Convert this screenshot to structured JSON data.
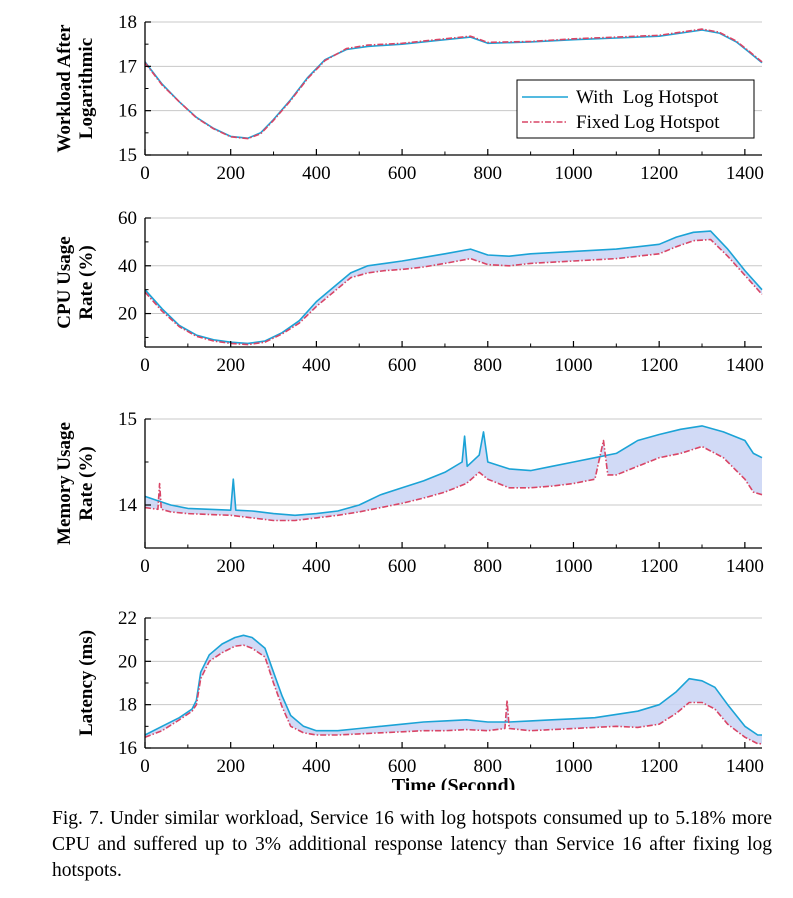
{
  "colors": {
    "with_hotspot": "#1ba3d6",
    "fixed_hotspot": "#d94566",
    "gap_fill": "#c9d3f5",
    "grid": "#c8c8c8"
  },
  "chart_data": [
    {
      "type": "line",
      "ylabel": [
        "Workload After",
        "Logarithmic"
      ],
      "xlabel": "",
      "xlim": [
        0,
        1440
      ],
      "ylim": [
        15,
        18
      ],
      "xticks": [
        0,
        200,
        400,
        600,
        800,
        1000,
        1200,
        1400
      ],
      "yticks": [
        15,
        16,
        17,
        18
      ],
      "grid": true,
      "fill_between": false,
      "legend": {
        "position": "right",
        "entries": [
          "With  Log Hotspot",
          "Fixed Log Hotspot"
        ]
      },
      "series": [
        {
          "name": "With  Log Hotspot",
          "x": [
            0,
            40,
            80,
            120,
            160,
            200,
            240,
            270,
            300,
            340,
            380,
            420,
            470,
            520,
            600,
            680,
            760,
            800,
            900,
            1000,
            1100,
            1200,
            1300,
            1340,
            1380,
            1410,
            1440
          ],
          "y": [
            17.1,
            16.6,
            16.2,
            15.85,
            15.6,
            15.42,
            15.38,
            15.5,
            15.8,
            16.25,
            16.75,
            17.15,
            17.38,
            17.45,
            17.5,
            17.58,
            17.66,
            17.52,
            17.55,
            17.6,
            17.64,
            17.68,
            17.82,
            17.75,
            17.55,
            17.32,
            17.08
          ]
        },
        {
          "name": "Fixed Log Hotspot",
          "x": [
            0,
            40,
            80,
            120,
            160,
            200,
            240,
            270,
            300,
            340,
            380,
            420,
            470,
            520,
            600,
            680,
            760,
            800,
            900,
            1000,
            1100,
            1200,
            1300,
            1340,
            1380,
            1410,
            1440
          ],
          "y": [
            17.08,
            16.58,
            16.2,
            15.84,
            15.59,
            15.41,
            15.37,
            15.48,
            15.78,
            16.23,
            16.73,
            17.13,
            17.4,
            17.48,
            17.52,
            17.6,
            17.68,
            17.54,
            17.56,
            17.62,
            17.66,
            17.7,
            17.84,
            17.77,
            17.57,
            17.34,
            17.1
          ]
        }
      ]
    },
    {
      "type": "line",
      "ylabel": [
        "CPU Usage",
        "Rate (%)"
      ],
      "xlabel": "",
      "xlim": [
        0,
        1440
      ],
      "ylim": [
        6,
        60
      ],
      "xticks": [
        0,
        200,
        400,
        600,
        800,
        1000,
        1200,
        1400
      ],
      "yticks": [
        20,
        40,
        60
      ],
      "grid": true,
      "fill_between": true,
      "series": [
        {
          "name": "With  Log Hotspot",
          "x": [
            0,
            40,
            80,
            120,
            160,
            200,
            240,
            280,
            320,
            360,
            400,
            440,
            480,
            520,
            560,
            600,
            650,
            700,
            760,
            800,
            850,
            900,
            1000,
            1100,
            1200,
            1240,
            1280,
            1320,
            1360,
            1400,
            1440
          ],
          "y": [
            30,
            22,
            15,
            11,
            9,
            8,
            7.5,
            8.5,
            12,
            17,
            25,
            31,
            37,
            40,
            41,
            42,
            43.5,
            45,
            47,
            44.5,
            44,
            45,
            46,
            47,
            49,
            52,
            54,
            54.5,
            47,
            38,
            30
          ]
        },
        {
          "name": "Fixed Log Hotspot",
          "x": [
            0,
            40,
            80,
            120,
            160,
            200,
            240,
            280,
            320,
            360,
            400,
            440,
            480,
            520,
            560,
            600,
            650,
            700,
            760,
            800,
            850,
            900,
            1000,
            1100,
            1200,
            1240,
            1280,
            1320,
            1360,
            1400,
            1440
          ],
          "y": [
            29,
            21,
            14.5,
            10.5,
            8.5,
            7.5,
            7,
            8,
            11.5,
            16,
            23,
            29,
            35,
            37,
            38,
            38.5,
            39.5,
            41,
            43,
            40.5,
            40,
            41,
            42,
            43,
            45,
            48,
            50.5,
            51,
            44,
            36,
            28
          ]
        }
      ]
    },
    {
      "type": "line",
      "ylabel": [
        "Memory Usage",
        "Rate (%)"
      ],
      "xlabel": "",
      "xlim": [
        0,
        1440
      ],
      "ylim": [
        13.5,
        15
      ],
      "xticks": [
        0,
        200,
        400,
        600,
        800,
        1000,
        1200,
        1400
      ],
      "yticks": [
        14,
        15
      ],
      "grid": true,
      "fill_between": true,
      "series": [
        {
          "name": "With  Log Hotspot",
          "x": [
            0,
            30,
            60,
            100,
            150,
            200,
            206,
            212,
            250,
            300,
            350,
            400,
            450,
            500,
            550,
            600,
            650,
            700,
            740,
            746,
            752,
            780,
            790,
            800,
            850,
            900,
            950,
            1000,
            1050,
            1100,
            1150,
            1200,
            1250,
            1300,
            1350,
            1400,
            1420,
            1440
          ],
          "y": [
            14.1,
            14.05,
            14.0,
            13.96,
            13.95,
            13.94,
            14.3,
            13.94,
            13.93,
            13.9,
            13.88,
            13.9,
            13.93,
            14.0,
            14.12,
            14.2,
            14.28,
            14.38,
            14.5,
            14.8,
            14.45,
            14.58,
            14.85,
            14.5,
            14.42,
            14.4,
            14.45,
            14.5,
            14.55,
            14.6,
            14.75,
            14.82,
            14.88,
            14.92,
            14.85,
            14.75,
            14.6,
            14.55
          ]
        },
        {
          "name": "Fixed Log Hotspot",
          "x": [
            0,
            30,
            34,
            38,
            60,
            100,
            150,
            200,
            250,
            300,
            350,
            400,
            450,
            500,
            550,
            600,
            650,
            700,
            750,
            780,
            800,
            850,
            900,
            950,
            1000,
            1050,
            1070,
            1080,
            1100,
            1150,
            1200,
            1250,
            1300,
            1350,
            1400,
            1420,
            1440
          ],
          "y": [
            13.97,
            13.95,
            14.25,
            13.95,
            13.92,
            13.9,
            13.89,
            13.88,
            13.85,
            13.82,
            13.82,
            13.85,
            13.88,
            13.92,
            13.97,
            14.02,
            14.08,
            14.15,
            14.25,
            14.38,
            14.3,
            14.2,
            14.2,
            14.22,
            14.25,
            14.3,
            14.75,
            14.35,
            14.35,
            14.45,
            14.55,
            14.6,
            14.68,
            14.55,
            14.3,
            14.15,
            14.12
          ]
        }
      ]
    },
    {
      "type": "line",
      "ylabel": [
        "Latency (ms)"
      ],
      "xlabel": "Time (Second)",
      "xlim": [
        0,
        1440
      ],
      "ylim": [
        16,
        22
      ],
      "xticks": [
        0,
        200,
        400,
        600,
        800,
        1000,
        1200,
        1400
      ],
      "yticks": [
        16,
        18,
        20,
        22
      ],
      "grid": true,
      "fill_between": true,
      "series": [
        {
          "name": "With  Log Hotspot",
          "x": [
            0,
            40,
            80,
            110,
            120,
            130,
            150,
            180,
            210,
            230,
            250,
            280,
            300,
            320,
            340,
            370,
            400,
            450,
            500,
            550,
            600,
            650,
            700,
            750,
            800,
            850,
            900,
            950,
            1000,
            1050,
            1100,
            1150,
            1200,
            1240,
            1270,
            1300,
            1330,
            1360,
            1400,
            1430,
            1440
          ],
          "y": [
            16.6,
            17.0,
            17.4,
            17.8,
            18.2,
            19.5,
            20.3,
            20.8,
            21.1,
            21.2,
            21.1,
            20.6,
            19.5,
            18.4,
            17.5,
            17.0,
            16.8,
            16.8,
            16.9,
            17.0,
            17.1,
            17.2,
            17.25,
            17.3,
            17.2,
            17.2,
            17.25,
            17.3,
            17.35,
            17.4,
            17.55,
            17.7,
            18.0,
            18.6,
            19.2,
            19.1,
            18.8,
            18.0,
            17.0,
            16.6,
            16.6
          ]
        },
        {
          "name": "Fixed Log Hotspot",
          "x": [
            0,
            40,
            80,
            110,
            120,
            130,
            150,
            180,
            210,
            230,
            250,
            280,
            300,
            320,
            340,
            370,
            400,
            450,
            500,
            550,
            600,
            650,
            700,
            750,
            800,
            840,
            845,
            850,
            900,
            950,
            1000,
            1050,
            1100,
            1150,
            1200,
            1240,
            1270,
            1300,
            1330,
            1360,
            1400,
            1430,
            1440
          ],
          "y": [
            16.5,
            16.8,
            17.3,
            17.7,
            18.0,
            19.2,
            20.0,
            20.4,
            20.7,
            20.75,
            20.6,
            20.2,
            19.0,
            17.9,
            17.0,
            16.7,
            16.6,
            16.6,
            16.65,
            16.7,
            16.75,
            16.8,
            16.8,
            16.85,
            16.8,
            16.9,
            18.2,
            16.9,
            16.8,
            16.85,
            16.9,
            16.95,
            17.0,
            16.95,
            17.1,
            17.6,
            18.1,
            18.1,
            17.8,
            17.1,
            16.5,
            16.2,
            16.2
          ]
        }
      ]
    }
  ],
  "caption": "Fig. 7.  Under similar workload, Service 16 with log hotspots consumed up to 5.18% more CPU and suffered up to 3% additional response latency than Service 16 after fixing log hotspots."
}
